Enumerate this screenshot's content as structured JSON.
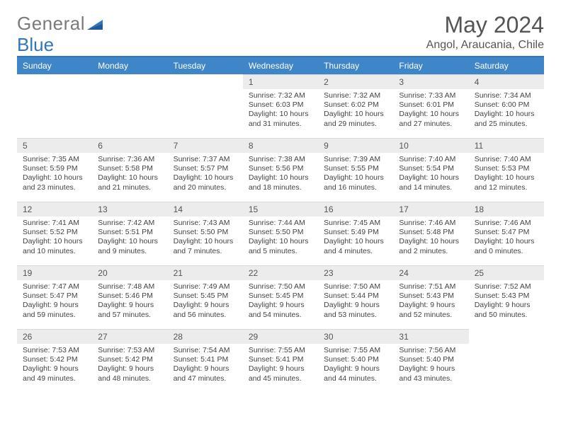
{
  "brand": {
    "part1": "General",
    "part2": "Blue"
  },
  "title": "May 2024",
  "location": "Angol, Araucania, Chile",
  "dow": [
    "Sunday",
    "Monday",
    "Tuesday",
    "Wednesday",
    "Thursday",
    "Friday",
    "Saturday"
  ],
  "colors": {
    "header_bg": "#3f86c8",
    "header_border": "#2f76bb",
    "daynum_bg": "#ececec",
    "text": "#444444"
  },
  "weeks": [
    [
      {
        "n": "",
        "sr": "",
        "ss": "",
        "dl": ""
      },
      {
        "n": "",
        "sr": "",
        "ss": "",
        "dl": ""
      },
      {
        "n": "",
        "sr": "",
        "ss": "",
        "dl": ""
      },
      {
        "n": "1",
        "sr": "7:32 AM",
        "ss": "6:03 PM",
        "dl": "10 hours and 31 minutes."
      },
      {
        "n": "2",
        "sr": "7:32 AM",
        "ss": "6:02 PM",
        "dl": "10 hours and 29 minutes."
      },
      {
        "n": "3",
        "sr": "7:33 AM",
        "ss": "6:01 PM",
        "dl": "10 hours and 27 minutes."
      },
      {
        "n": "4",
        "sr": "7:34 AM",
        "ss": "6:00 PM",
        "dl": "10 hours and 25 minutes."
      }
    ],
    [
      {
        "n": "5",
        "sr": "7:35 AM",
        "ss": "5:59 PM",
        "dl": "10 hours and 23 minutes."
      },
      {
        "n": "6",
        "sr": "7:36 AM",
        "ss": "5:58 PM",
        "dl": "10 hours and 21 minutes."
      },
      {
        "n": "7",
        "sr": "7:37 AM",
        "ss": "5:57 PM",
        "dl": "10 hours and 20 minutes."
      },
      {
        "n": "8",
        "sr": "7:38 AM",
        "ss": "5:56 PM",
        "dl": "10 hours and 18 minutes."
      },
      {
        "n": "9",
        "sr": "7:39 AM",
        "ss": "5:55 PM",
        "dl": "10 hours and 16 minutes."
      },
      {
        "n": "10",
        "sr": "7:40 AM",
        "ss": "5:54 PM",
        "dl": "10 hours and 14 minutes."
      },
      {
        "n": "11",
        "sr": "7:40 AM",
        "ss": "5:53 PM",
        "dl": "10 hours and 12 minutes."
      }
    ],
    [
      {
        "n": "12",
        "sr": "7:41 AM",
        "ss": "5:52 PM",
        "dl": "10 hours and 10 minutes."
      },
      {
        "n": "13",
        "sr": "7:42 AM",
        "ss": "5:51 PM",
        "dl": "10 hours and 9 minutes."
      },
      {
        "n": "14",
        "sr": "7:43 AM",
        "ss": "5:50 PM",
        "dl": "10 hours and 7 minutes."
      },
      {
        "n": "15",
        "sr": "7:44 AM",
        "ss": "5:50 PM",
        "dl": "10 hours and 5 minutes."
      },
      {
        "n": "16",
        "sr": "7:45 AM",
        "ss": "5:49 PM",
        "dl": "10 hours and 4 minutes."
      },
      {
        "n": "17",
        "sr": "7:46 AM",
        "ss": "5:48 PM",
        "dl": "10 hours and 2 minutes."
      },
      {
        "n": "18",
        "sr": "7:46 AM",
        "ss": "5:47 PM",
        "dl": "10 hours and 0 minutes."
      }
    ],
    [
      {
        "n": "19",
        "sr": "7:47 AM",
        "ss": "5:47 PM",
        "dl": "9 hours and 59 minutes."
      },
      {
        "n": "20",
        "sr": "7:48 AM",
        "ss": "5:46 PM",
        "dl": "9 hours and 57 minutes."
      },
      {
        "n": "21",
        "sr": "7:49 AM",
        "ss": "5:45 PM",
        "dl": "9 hours and 56 minutes."
      },
      {
        "n": "22",
        "sr": "7:50 AM",
        "ss": "5:45 PM",
        "dl": "9 hours and 54 minutes."
      },
      {
        "n": "23",
        "sr": "7:50 AM",
        "ss": "5:44 PM",
        "dl": "9 hours and 53 minutes."
      },
      {
        "n": "24",
        "sr": "7:51 AM",
        "ss": "5:43 PM",
        "dl": "9 hours and 52 minutes."
      },
      {
        "n": "25",
        "sr": "7:52 AM",
        "ss": "5:43 PM",
        "dl": "9 hours and 50 minutes."
      }
    ],
    [
      {
        "n": "26",
        "sr": "7:53 AM",
        "ss": "5:42 PM",
        "dl": "9 hours and 49 minutes."
      },
      {
        "n": "27",
        "sr": "7:53 AM",
        "ss": "5:42 PM",
        "dl": "9 hours and 48 minutes."
      },
      {
        "n": "28",
        "sr": "7:54 AM",
        "ss": "5:41 PM",
        "dl": "9 hours and 47 minutes."
      },
      {
        "n": "29",
        "sr": "7:55 AM",
        "ss": "5:41 PM",
        "dl": "9 hours and 45 minutes."
      },
      {
        "n": "30",
        "sr": "7:55 AM",
        "ss": "5:40 PM",
        "dl": "9 hours and 44 minutes."
      },
      {
        "n": "31",
        "sr": "7:56 AM",
        "ss": "5:40 PM",
        "dl": "9 hours and 43 minutes."
      },
      {
        "n": "",
        "sr": "",
        "ss": "",
        "dl": ""
      }
    ]
  ],
  "labels": {
    "sunrise": "Sunrise:",
    "sunset": "Sunset:",
    "daylight": "Daylight:"
  }
}
